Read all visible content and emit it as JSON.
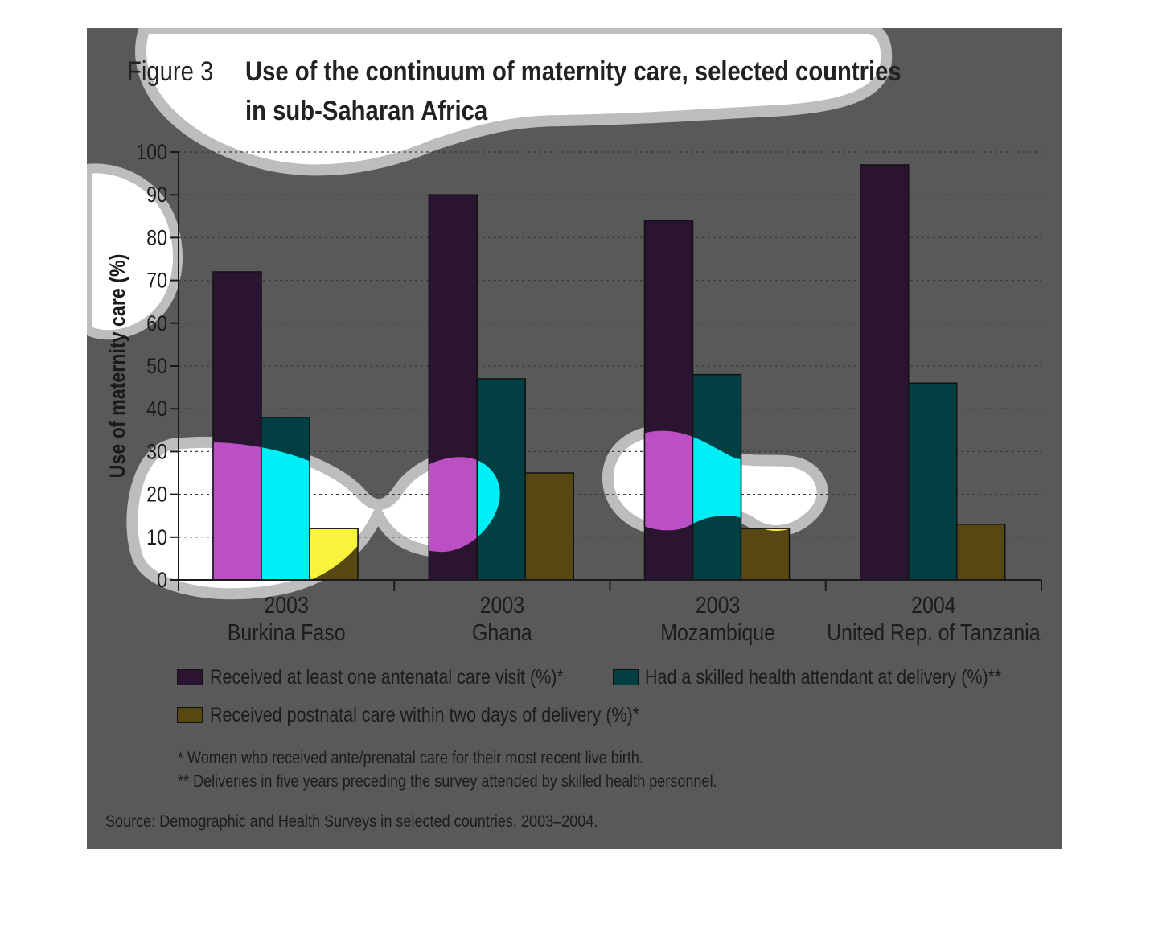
{
  "figure": {
    "label": "Figure 3",
    "title_line1": "Use of the continuum of maternity care, selected countries",
    "title_line2": "in sub-Saharan Africa"
  },
  "colors": {
    "background": "#595959",
    "antenatal": "#2b1430",
    "skilled": "#023f43",
    "postnatal": "#574813",
    "antenatal_highlight": "#bb4fc3",
    "skilled_highlight": "#00eef6",
    "postnatal_highlight": "#f8f33b"
  },
  "chart_data": {
    "type": "bar",
    "categories": [
      {
        "year": "2003",
        "country": "Burkina Faso"
      },
      {
        "year": "2003",
        "country": "Ghana"
      },
      {
        "year": "2003",
        "country": "Mozambique"
      },
      {
        "year": "2004",
        "country": "United Rep. of Tanzania"
      }
    ],
    "series": [
      {
        "name": "Received at least one antenatal care visit (%)*",
        "values": [
          72,
          90,
          84,
          97
        ]
      },
      {
        "name": "Had a skilled health attendant at delivery (%)**",
        "values": [
          38,
          47,
          48,
          46
        ]
      },
      {
        "name": "Received postnatal care within two days of delivery (%)*",
        "values": [
          12,
          25,
          12,
          13
        ]
      }
    ],
    "ylabel": "Use of maternity care (%)",
    "ylim": [
      0,
      100
    ],
    "yticks": [
      0,
      10,
      20,
      30,
      40,
      50,
      60,
      70,
      80,
      90,
      100
    ],
    "grid": true,
    "legend_position": "bottom"
  },
  "footnotes": [
    "* Women who received ante/prenatal care for their most recent live birth.",
    "** Deliveries in five years preceding the survey attended by skilled health personnel."
  ],
  "source": "Source: Demographic and Health Surveys in selected countries, 2003–2004."
}
